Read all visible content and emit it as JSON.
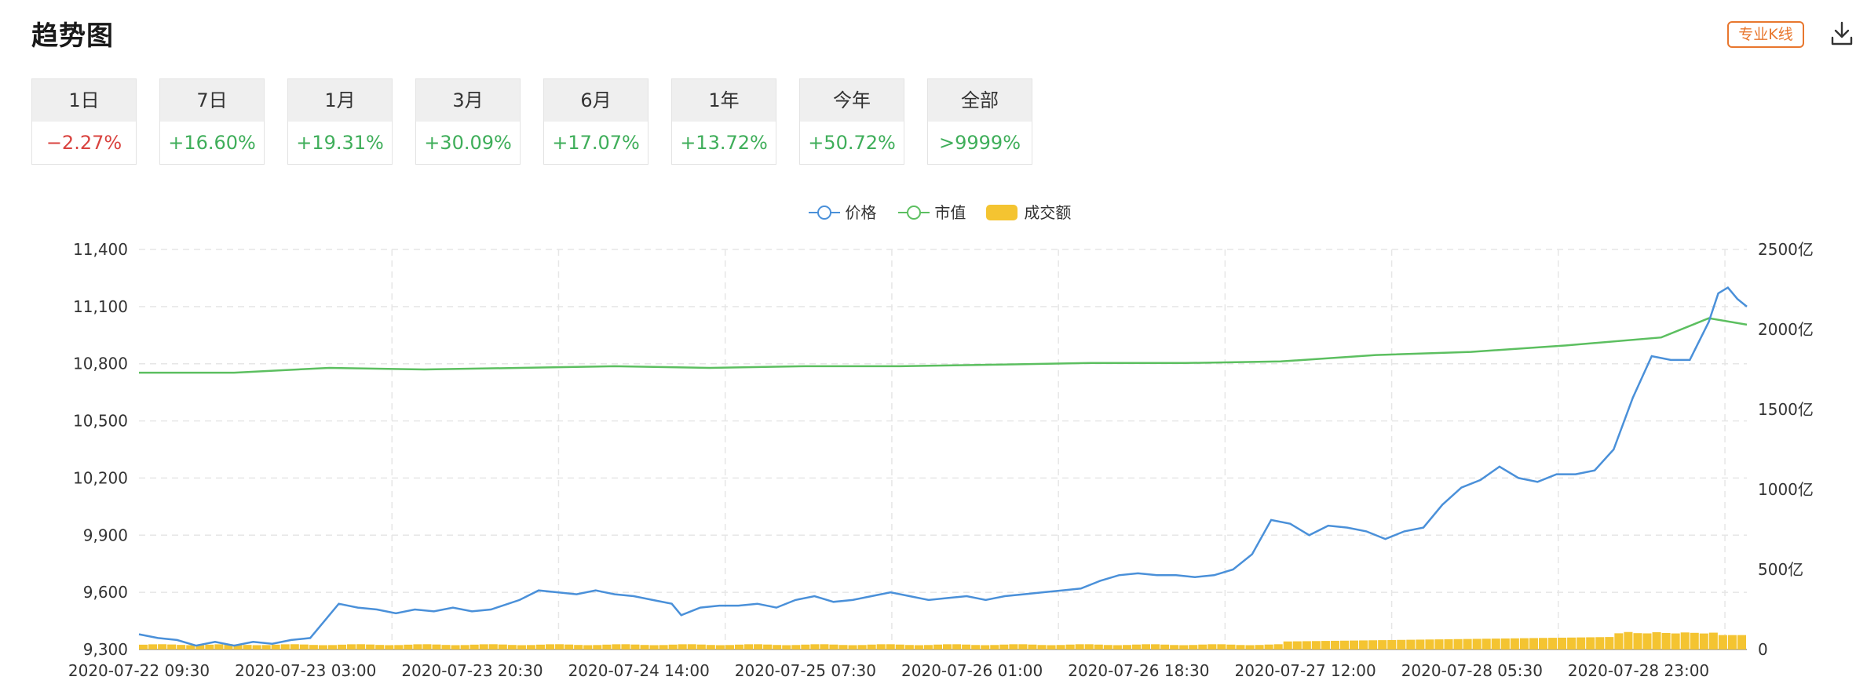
{
  "header": {
    "title": "趋势图",
    "kline_label": "专业K线",
    "download_icon": "download-icon"
  },
  "colors": {
    "accent": "#e8772e",
    "positive": "#3fae5a",
    "negative": "#d9433f",
    "price": "#4a90d9",
    "market_cap": "#5cbf60",
    "volume": "#f4c431"
  },
  "tabs": [
    {
      "label": "1日",
      "change": "−2.27%",
      "dir": "down",
      "active": false
    },
    {
      "label": "7日",
      "change": "+16.60%",
      "dir": "up",
      "active": true
    },
    {
      "label": "1月",
      "change": "+19.31%",
      "dir": "up",
      "active": false
    },
    {
      "label": "3月",
      "change": "+30.09%",
      "dir": "up",
      "active": false
    },
    {
      "label": "6月",
      "change": "+17.07%",
      "dir": "up",
      "active": false
    },
    {
      "label": "1年",
      "change": "+13.72%",
      "dir": "up",
      "active": false
    },
    {
      "label": "今年",
      "change": "+50.72%",
      "dir": "up",
      "active": false
    },
    {
      "label": "全部",
      "change": ">9999%",
      "dir": "up",
      "active": false
    }
  ],
  "chart_data": {
    "type": "line",
    "legend": [
      "价格",
      "市值",
      "成交额"
    ],
    "legend_placement": "top-center",
    "grid": true,
    "y_left": {
      "ticks": [
        "11,400",
        "11,100",
        "10,800",
        "10,500",
        "10,200",
        "9,900",
        "9,600",
        "9,300"
      ],
      "range": [
        9300,
        11400
      ]
    },
    "y_right": {
      "ticks": [
        "2500亿",
        "2000亿",
        "1500亿",
        "1000亿",
        "500亿",
        "0"
      ],
      "range": [
        0,
        2500
      ]
    },
    "x_ticks": [
      "2020-07-22 09:30",
      "2020-07-23 03:00",
      "2020-07-23 20:30",
      "2020-07-24 14:00",
      "2020-07-25 07:30",
      "2020-07-26 01:00",
      "2020-07-26 18:30",
      "2020-07-27 12:00",
      "2020-07-28 05:30",
      "2020-07-28 23:00"
    ],
    "x_range_hours": [
      0,
      169
    ],
    "series": [
      {
        "name": "价格",
        "axis": "left",
        "points": [
          [
            0,
            9380
          ],
          [
            2,
            9360
          ],
          [
            4,
            9350
          ],
          [
            6,
            9320
          ],
          [
            8,
            9340
          ],
          [
            10,
            9320
          ],
          [
            12,
            9340
          ],
          [
            14,
            9330
          ],
          [
            16,
            9350
          ],
          [
            18,
            9360
          ],
          [
            19,
            9420
          ],
          [
            21,
            9540
          ],
          [
            23,
            9520
          ],
          [
            25,
            9510
          ],
          [
            27,
            9490
          ],
          [
            29,
            9510
          ],
          [
            31,
            9500
          ],
          [
            33,
            9520
          ],
          [
            35,
            9500
          ],
          [
            37,
            9510
          ],
          [
            40,
            9560
          ],
          [
            42,
            9610
          ],
          [
            44,
            9600
          ],
          [
            46,
            9590
          ],
          [
            48,
            9610
          ],
          [
            50,
            9590
          ],
          [
            52,
            9580
          ],
          [
            54,
            9560
          ],
          [
            56,
            9540
          ],
          [
            57,
            9480
          ],
          [
            59,
            9520
          ],
          [
            61,
            9530
          ],
          [
            63,
            9530
          ],
          [
            65,
            9540
          ],
          [
            67,
            9520
          ],
          [
            69,
            9560
          ],
          [
            71,
            9580
          ],
          [
            73,
            9550
          ],
          [
            75,
            9560
          ],
          [
            77,
            9580
          ],
          [
            79,
            9600
          ],
          [
            81,
            9580
          ],
          [
            83,
            9560
          ],
          [
            85,
            9570
          ],
          [
            87,
            9580
          ],
          [
            89,
            9560
          ],
          [
            91,
            9580
          ],
          [
            93,
            9590
          ],
          [
            95,
            9600
          ],
          [
            97,
            9610
          ],
          [
            99,
            9620
          ],
          [
            101,
            9660
          ],
          [
            103,
            9690
          ],
          [
            105,
            9700
          ],
          [
            107,
            9690
          ],
          [
            109,
            9690
          ],
          [
            111,
            9680
          ],
          [
            113,
            9690
          ],
          [
            115,
            9720
          ],
          [
            117,
            9800
          ],
          [
            119,
            9980
          ],
          [
            121,
            9960
          ],
          [
            123,
            9900
          ],
          [
            125,
            9950
          ],
          [
            127,
            9940
          ],
          [
            129,
            9920
          ],
          [
            131,
            9880
          ],
          [
            133,
            9920
          ],
          [
            135,
            9940
          ],
          [
            137,
            10060
          ],
          [
            139,
            10150
          ],
          [
            141,
            10190
          ],
          [
            143,
            10260
          ],
          [
            145,
            10200
          ],
          [
            147,
            10180
          ],
          [
            149,
            10220
          ],
          [
            151,
            10220
          ],
          [
            153,
            10240
          ],
          [
            155,
            10350
          ],
          [
            157,
            10620
          ],
          [
            159,
            10840
          ],
          [
            161,
            10820
          ],
          [
            163,
            10820
          ],
          [
            165,
            11020
          ],
          [
            166,
            11170
          ],
          [
            167,
            11200
          ],
          [
            168,
            11140
          ],
          [
            169,
            11100
          ]
        ]
      },
      {
        "name": "市值",
        "axis": "right",
        "points": [
          [
            0,
            1730
          ],
          [
            10,
            1730
          ],
          [
            20,
            1760
          ],
          [
            30,
            1750
          ],
          [
            40,
            1760
          ],
          [
            50,
            1770
          ],
          [
            60,
            1760
          ],
          [
            70,
            1770
          ],
          [
            80,
            1770
          ],
          [
            90,
            1780
          ],
          [
            100,
            1790
          ],
          [
            110,
            1790
          ],
          [
            120,
            1800
          ],
          [
            130,
            1840
          ],
          [
            140,
            1860
          ],
          [
            150,
            1900
          ],
          [
            160,
            1950
          ],
          [
            165,
            2070
          ],
          [
            169,
            2030
          ]
        ]
      },
      {
        "name": "成交额",
        "type": "bar",
        "axis": "right",
        "values_range": [
          20,
          120
        ]
      }
    ]
  }
}
